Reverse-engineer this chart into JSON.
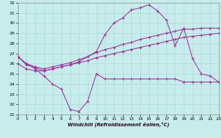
{
  "xlabel": "Windchill (Refroidissement éolien,°C)",
  "background_color": "#c8ecec",
  "line_color": "#993399",
  "grid_color": "#aadddd",
  "xlim": [
    0,
    23
  ],
  "ylim": [
    21,
    32
  ],
  "xticks": [
    0,
    1,
    2,
    3,
    4,
    5,
    6,
    7,
    8,
    9,
    10,
    11,
    12,
    13,
    14,
    15,
    16,
    17,
    18,
    19,
    20,
    21,
    22,
    23
  ],
  "yticks": [
    21,
    22,
    23,
    24,
    25,
    26,
    27,
    28,
    29,
    30,
    31,
    32
  ],
  "line1_y": [
    26.7,
    26.0,
    25.5,
    24.8,
    24.0,
    23.5,
    21.5,
    21.3,
    22.3,
    25.0,
    24.5,
    24.5,
    24.5,
    24.5,
    24.5,
    24.5,
    24.5,
    24.5,
    24.5,
    24.2,
    24.2,
    24.2,
    24.2,
    24.2
  ],
  "line2_y": [
    26.0,
    25.5,
    25.3,
    25.3,
    25.5,
    25.7,
    25.9,
    26.1,
    26.3,
    26.6,
    26.8,
    27.0,
    27.2,
    27.4,
    27.6,
    27.8,
    28.0,
    28.2,
    28.4,
    28.6,
    28.7,
    28.8,
    28.9,
    29.0
  ],
  "line3_y": [
    26.7,
    26.0,
    25.7,
    25.5,
    25.7,
    25.9,
    26.1,
    26.4,
    26.7,
    27.1,
    27.4,
    27.6,
    27.9,
    28.1,
    28.4,
    28.6,
    28.8,
    29.0,
    29.2,
    29.4,
    29.4,
    29.5,
    29.5,
    29.5
  ],
  "line4_y": [
    26.7,
    25.9,
    25.6,
    25.3,
    25.5,
    25.7,
    25.9,
    26.2,
    26.7,
    27.2,
    28.9,
    30.0,
    30.5,
    31.3,
    31.5,
    31.8,
    31.2,
    30.3,
    27.8,
    29.5,
    26.5,
    25.0,
    24.8,
    24.2
  ]
}
